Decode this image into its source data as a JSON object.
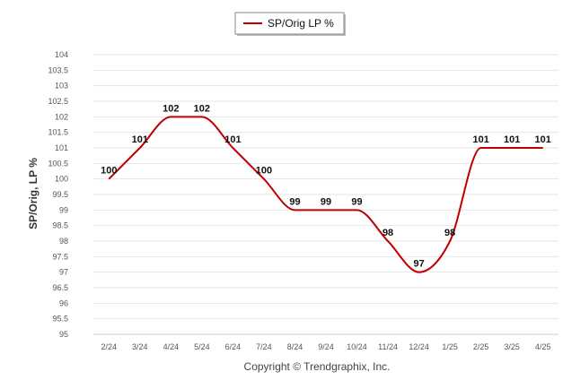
{
  "chart_data": {
    "type": "line",
    "categories": [
      "2/24",
      "3/24",
      "4/24",
      "5/24",
      "6/24",
      "7/24",
      "8/24",
      "9/24",
      "10/24",
      "11/24",
      "12/24",
      "1/25",
      "2/25",
      "3/25",
      "4/25"
    ],
    "series": [
      {
        "name": "SP/Orig LP %",
        "color": "#c00000",
        "values": [
          100,
          101,
          102,
          102,
          101,
          100,
          99,
          99,
          99,
          98,
          97,
          98,
          101,
          101,
          101
        ],
        "labels": [
          "100",
          "101",
          "102",
          "102",
          "101",
          "100",
          "99",
          "99",
          "99",
          "98",
          "97",
          "98",
          "101",
          "101",
          "101"
        ]
      }
    ],
    "ylabel": "SP/Orig, LP %",
    "ylim": [
      95,
      104
    ],
    "yticks": [
      "95",
      "95.5",
      "96",
      "96.5",
      "97",
      "97.5",
      "98",
      "98.5",
      "99",
      "99.5",
      "100",
      "100.5",
      "101",
      "101.5",
      "102",
      "102.5",
      "103",
      "103.5",
      "104"
    ],
    "grid": true,
    "legend": "top-center"
  },
  "footer": {
    "copyright": "Copyright © Trendgraphix, Inc."
  }
}
